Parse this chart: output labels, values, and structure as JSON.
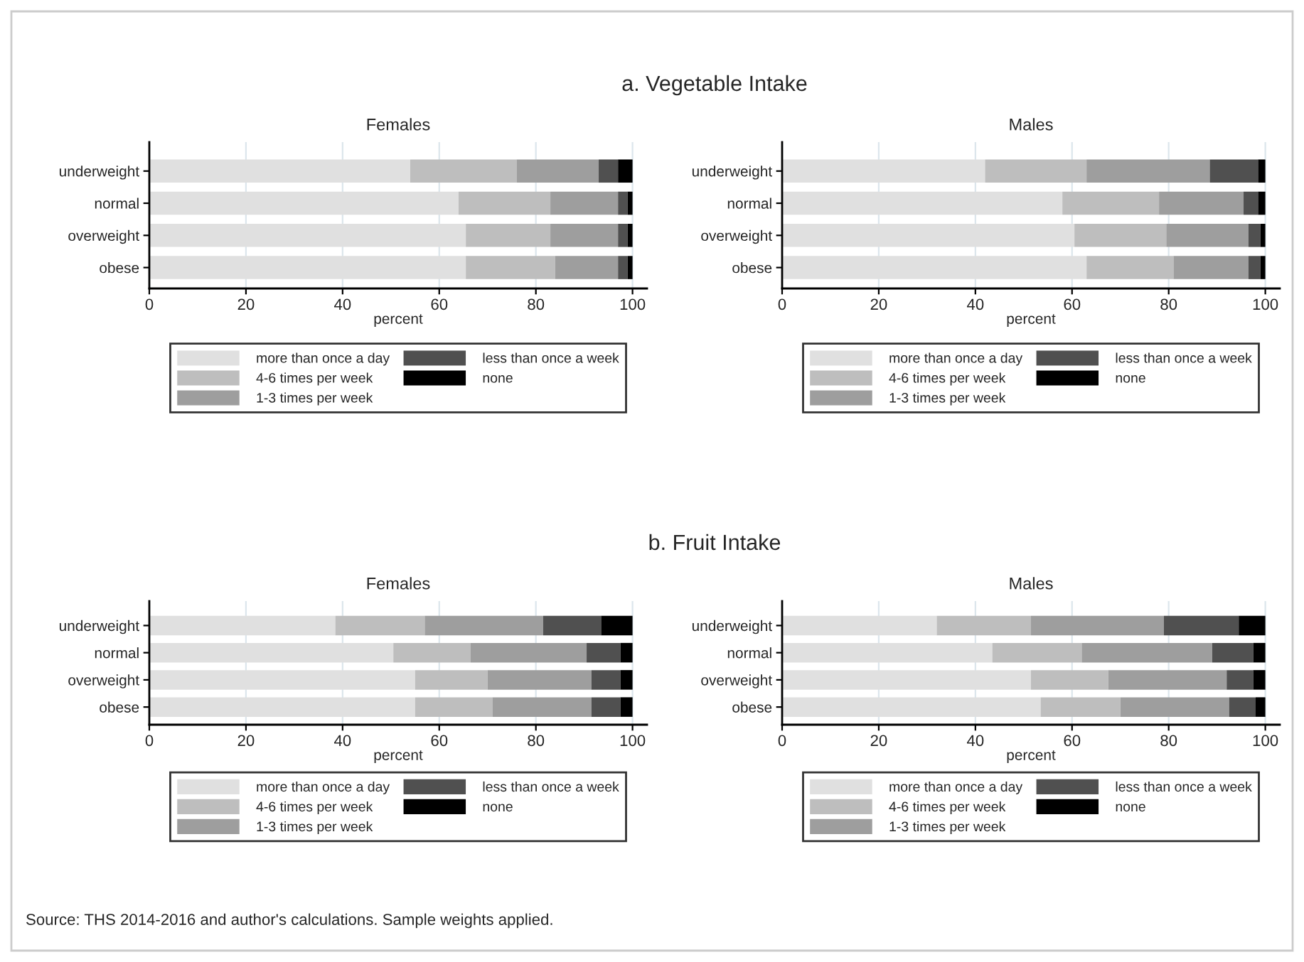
{
  "chart_data": [
    {
      "type": "bar",
      "orientation": "horizontal",
      "stacked": true,
      "subtitle": "a. Vegetable Intake",
      "title": "Females",
      "xlabel": "percent",
      "categories": [
        "underweight",
        "normal",
        "overweight",
        "obese"
      ],
      "xlim": [
        0,
        103
      ],
      "xticks": [
        0,
        20,
        40,
        60,
        80,
        100
      ],
      "grid": "x",
      "legend": "bottom",
      "series": [
        {
          "name": "more than once a day",
          "color": "#e0e0e0",
          "values": [
            54,
            64,
            65.5,
            65.5
          ]
        },
        {
          "name": "4-6 times per week",
          "color": "#bebebe",
          "values": [
            22,
            19,
            17.5,
            18.5
          ]
        },
        {
          "name": "1-3 times per week",
          "color": "#9e9e9e",
          "values": [
            17,
            14,
            14,
            13
          ]
        },
        {
          "name": "less than once a week",
          "color": "#505050",
          "values": [
            4,
            2,
            2,
            2
          ]
        },
        {
          "name": "none",
          "color": "#000000",
          "values": [
            3,
            1,
            1,
            1
          ]
        }
      ]
    },
    {
      "type": "bar",
      "orientation": "horizontal",
      "stacked": true,
      "title": "Males",
      "xlabel": "percent",
      "categories": [
        "underweight",
        "normal",
        "overweight",
        "obese"
      ],
      "xlim": [
        0,
        103
      ],
      "xticks": [
        0,
        20,
        40,
        60,
        80,
        100
      ],
      "grid": "x",
      "legend": "bottom",
      "series": [
        {
          "name": "more than once a day",
          "color": "#e0e0e0",
          "values": [
            42,
            58,
            60.5,
            63
          ]
        },
        {
          "name": "4-6 times per week",
          "color": "#bebebe",
          "values": [
            21,
            20,
            19,
            18
          ]
        },
        {
          "name": "1-3 times per week",
          "color": "#9e9e9e",
          "values": [
            25.5,
            17.5,
            17,
            15.5
          ]
        },
        {
          "name": "less than once a week",
          "color": "#505050",
          "values": [
            10,
            3,
            2.5,
            2.5
          ]
        },
        {
          "name": "none",
          "color": "#000000",
          "values": [
            1.5,
            1.5,
            1,
            1
          ]
        }
      ]
    },
    {
      "type": "bar",
      "orientation": "horizontal",
      "stacked": true,
      "subtitle": "b. Fruit Intake",
      "title": "Females",
      "xlabel": "percent",
      "categories": [
        "underweight",
        "normal",
        "overweight",
        "obese"
      ],
      "xlim": [
        0,
        103
      ],
      "xticks": [
        0,
        20,
        40,
        60,
        80,
        100
      ],
      "grid": "x",
      "legend": "bottom",
      "series": [
        {
          "name": "more than once a day",
          "color": "#e0e0e0",
          "values": [
            38.5,
            50.5,
            55,
            55
          ]
        },
        {
          "name": "4-6 times per week",
          "color": "#bebebe",
          "values": [
            18.5,
            16,
            15,
            16
          ]
        },
        {
          "name": "1-3 times per week",
          "color": "#9e9e9e",
          "values": [
            24.5,
            24,
            21.5,
            20.5
          ]
        },
        {
          "name": "less than once a week",
          "color": "#505050",
          "values": [
            12,
            7,
            6,
            6
          ]
        },
        {
          "name": "none",
          "color": "#000000",
          "values": [
            6.5,
            2.5,
            2.5,
            2.5
          ]
        }
      ]
    },
    {
      "type": "bar",
      "orientation": "horizontal",
      "stacked": true,
      "title": "Males",
      "xlabel": "percent",
      "categories": [
        "underweight",
        "normal",
        "overweight",
        "obese"
      ],
      "xlim": [
        0,
        103
      ],
      "xticks": [
        0,
        20,
        40,
        60,
        80,
        100
      ],
      "grid": "x",
      "legend": "bottom",
      "annotations": [
        "Source: THS 2014-2016 and author's calculations. Sample weights applied."
      ],
      "series": [
        {
          "name": "more than once a day",
          "color": "#e0e0e0",
          "values": [
            32,
            43.5,
            51.5,
            53.5
          ]
        },
        {
          "name": "4-6 times per week",
          "color": "#bebebe",
          "values": [
            19.5,
            18.5,
            16,
            16.5
          ]
        },
        {
          "name": "1-3 times per week",
          "color": "#9e9e9e",
          "values": [
            27.5,
            27,
            24.5,
            22.5
          ]
        },
        {
          "name": "less than once a week",
          "color": "#505050",
          "values": [
            15.5,
            8.5,
            5.5,
            5.5
          ]
        },
        {
          "name": "none",
          "color": "#000000",
          "values": [
            5.5,
            2.5,
            2.5,
            2
          ]
        }
      ]
    }
  ]
}
